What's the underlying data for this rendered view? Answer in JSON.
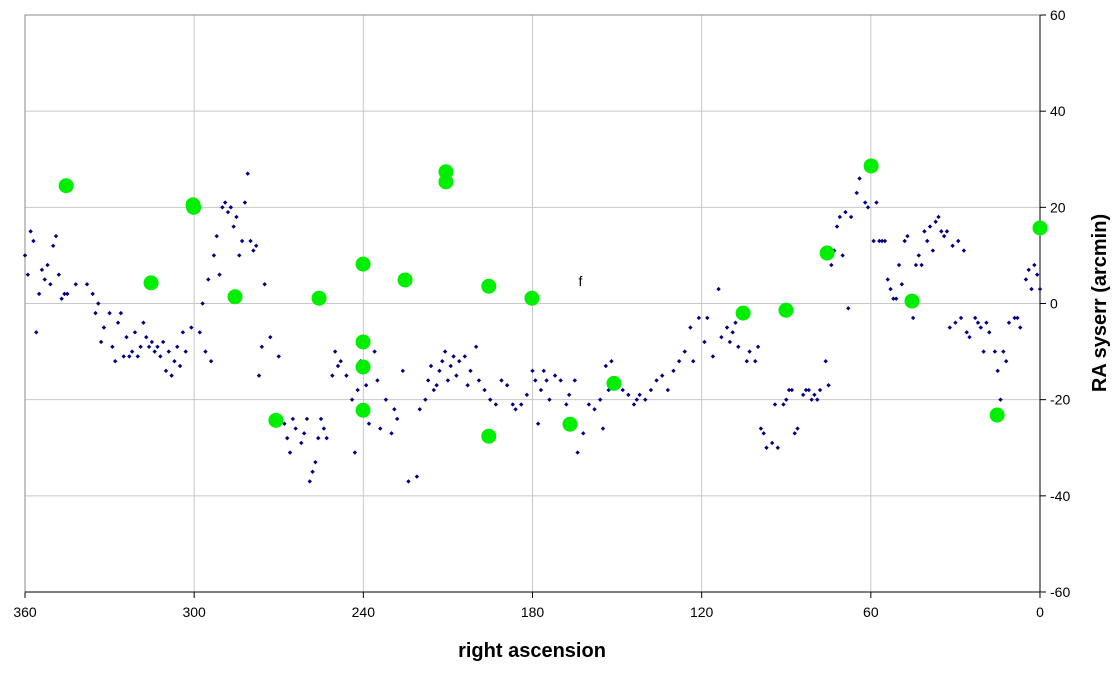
{
  "chart_data": {
    "type": "scatter",
    "x_label": "right ascension",
    "y_label": "RA syserr (arcmin)",
    "annotation": "f",
    "annotation_at": [
      163,
      4.7
    ],
    "xlim": [
      360,
      0
    ],
    "xticks": [
      360,
      300,
      240,
      180,
      120,
      60,
      0
    ],
    "ylim": [
      -60,
      60
    ],
    "yticks": [
      -60,
      -40,
      -20,
      0,
      20,
      40,
      60
    ],
    "grid": true,
    "y_axis_side": "right",
    "series": [
      {
        "color": "#000080",
        "marker": "diamond",
        "x": [
          360,
          359,
          358,
          357,
          356,
          355,
          354,
          353,
          352,
          351,
          350,
          349,
          348,
          347,
          346,
          345,
          342,
          338,
          336,
          335,
          334,
          333,
          332,
          330,
          329,
          328,
          327,
          326,
          325,
          324,
          323,
          322,
          321,
          320,
          319,
          318,
          317,
          316,
          315,
          314,
          313,
          312,
          311,
          310,
          309,
          308,
          307,
          306,
          305,
          304,
          303,
          301,
          298,
          297,
          296,
          295,
          294,
          293,
          292,
          291,
          290,
          289,
          288,
          287,
          286,
          285,
          284,
          283,
          282,
          281,
          280,
          279,
          278,
          277,
          276,
          275,
          273,
          270,
          268,
          267,
          266,
          265,
          264,
          262,
          261,
          260,
          259,
          258,
          257,
          256,
          255,
          254,
          253,
          251,
          250,
          249,
          248,
          246,
          244,
          243,
          242,
          241,
          239,
          238,
          236,
          235,
          234,
          232,
          230,
          229,
          228,
          226,
          224,
          221,
          220,
          218,
          217,
          216,
          215,
          214,
          213,
          212,
          211,
          210,
          209,
          208,
          207,
          206,
          204,
          203,
          202,
          200,
          199,
          197,
          195,
          193,
          191,
          189,
          187,
          186,
          184,
          182,
          180,
          179,
          178,
          177,
          176,
          175,
          174,
          172,
          170,
          168,
          167,
          166,
          165,
          164,
          162,
          160,
          158,
          156,
          155,
          154,
          153,
          152,
          150,
          148,
          146,
          144,
          143,
          142,
          140,
          138,
          136,
          134,
          132,
          130,
          128,
          126,
          124,
          123,
          121,
          119,
          118,
          116,
          114,
          113,
          111,
          110,
          109,
          108,
          107,
          106,
          104,
          103,
          101,
          100,
          99,
          98,
          97,
          95,
          94,
          93,
          91,
          90,
          89,
          88,
          87,
          86,
          84,
          83,
          82,
          81,
          80,
          79,
          78,
          76,
          75,
          74,
          73,
          72,
          71,
          70,
          69,
          68,
          67,
          65,
          64,
          62,
          61,
          59,
          58,
          57,
          56,
          55,
          54,
          53,
          52,
          51,
          50,
          49,
          48,
          47,
          46,
          45,
          44,
          43,
          42,
          41,
          40,
          39,
          38,
          37,
          36,
          35,
          34,
          33,
          32,
          31,
          30,
          29,
          28,
          27,
          26,
          25,
          23,
          22,
          21,
          20,
          19,
          18,
          16,
          15,
          14,
          13,
          12,
          11,
          9,
          8,
          7,
          5,
          4,
          3,
          2,
          1,
          0
        ],
        "values": [
          10,
          6,
          15,
          13,
          -6,
          2,
          7,
          5,
          8,
          4,
          12,
          14,
          6,
          1,
          2,
          2,
          4,
          4,
          2,
          -2,
          0,
          -8,
          -5,
          -2,
          -9,
          -12,
          -4,
          -2,
          -11,
          -7,
          -11,
          -10,
          -6,
          -11,
          -9,
          -4,
          -7,
          -9,
          -8,
          -10,
          -9,
          -11,
          -8,
          -14,
          -10,
          -15,
          -12,
          -9,
          -13,
          -6,
          -10,
          -5,
          -6,
          0,
          -10,
          5,
          -12,
          10,
          14,
          6,
          20,
          21,
          19,
          20,
          16,
          18,
          10,
          13,
          21,
          27,
          13,
          11,
          12,
          -15,
          -9,
          4,
          -7,
          -11,
          -25,
          -28,
          -31,
          -24,
          -26,
          -29,
          -27,
          -24,
          -37,
          -35,
          -33,
          -28,
          -24,
          -26,
          -28,
          -15,
          -10,
          -13,
          -12,
          -15,
          -20,
          -31,
          -18,
          -12,
          -17,
          -25,
          -10,
          -16,
          -26,
          -20,
          -27,
          -22,
          -24,
          -14,
          -37,
          -36,
          -22,
          -20,
          -16,
          -13,
          -18,
          -17,
          -14,
          -12,
          -10,
          -16,
          -13,
          -11,
          -15,
          -12,
          -11,
          -17,
          -14,
          -9,
          -16,
          -18,
          -20,
          -21,
          -16,
          -17,
          -21,
          -22,
          -21,
          -19,
          -14,
          -16,
          -25,
          -18,
          -14,
          -16,
          -20,
          -15,
          -16,
          -21,
          -19,
          -26,
          -16,
          -31,
          -27,
          -21,
          -22,
          -20,
          -26,
          -13,
          -18,
          -12,
          -16,
          -18,
          -19,
          -21,
          -20,
          -19,
          -20,
          -18,
          -16,
          -15,
          -18,
          -14,
          -12,
          -10,
          -5,
          -12,
          -3,
          -8,
          -3,
          -11,
          3,
          -7,
          -5,
          -8,
          -6,
          -4,
          -9,
          -3,
          -12,
          -10,
          -12,
          -9,
          -26,
          -27,
          -30,
          -29,
          -21,
          -30,
          -21,
          -20,
          -18,
          -18,
          -27,
          -26,
          -19,
          -18,
          -18,
          -20,
          -19,
          -20,
          -18,
          -12,
          -17,
          8,
          11,
          16,
          18,
          10,
          19,
          -1,
          18,
          23,
          26,
          21,
          20,
          13,
          21,
          13,
          13,
          13,
          5,
          3,
          1,
          1,
          8,
          4,
          13,
          14,
          1,
          -3,
          8,
          10,
          8,
          15,
          13,
          16,
          11,
          17,
          18,
          15,
          14,
          15,
          -5,
          12,
          -4,
          13,
          -3,
          11,
          -6,
          -7,
          -3,
          -4,
          -5,
          -10,
          -4,
          -6,
          -10,
          -14,
          -20,
          -10,
          -12,
          -4,
          -3,
          -3,
          -5,
          5,
          7,
          3,
          8,
          6,
          3
        ]
      },
      {
        "color": "#00ee00",
        "marker": "circle",
        "x": [
          345.4,
          315.3,
          300.4,
          300.2,
          285.5,
          271,
          255.7,
          240.1,
          240.1,
          240.1,
          240.1,
          225.2,
          210.7,
          210.7,
          195.5,
          195.5,
          180.2,
          166.7,
          151.1,
          105.3,
          90.1,
          75.5,
          59.9,
          45.4,
          15.2,
          0
        ],
        "values": [
          24.5,
          4.3,
          20.5,
          20,
          1.4,
          -24.3,
          1.1,
          8.2,
          -8,
          -13.2,
          -22.2,
          4.9,
          27.4,
          25.3,
          3.6,
          -27.6,
          1.1,
          -25.1,
          -16.6,
          -2,
          -1.4,
          10.5,
          28.6,
          0.5,
          -23.2,
          15.7
        ]
      }
    ]
  }
}
